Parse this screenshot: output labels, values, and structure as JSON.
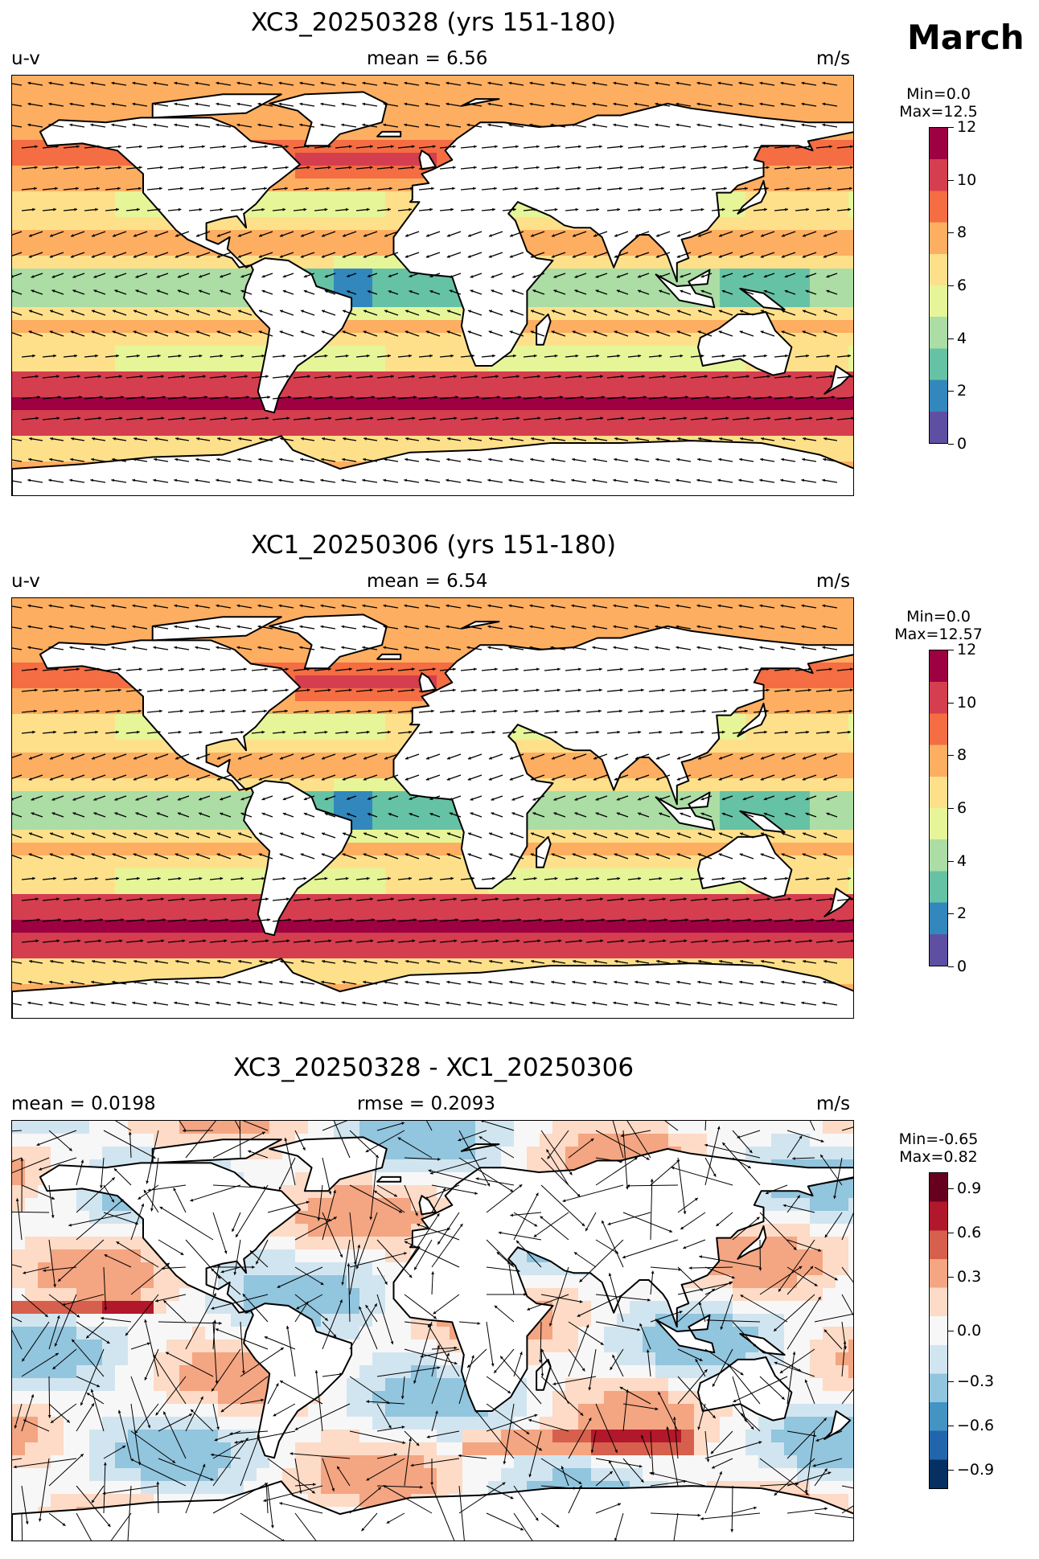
{
  "month": "March",
  "panels": [
    {
      "title": "XC3_20250328 (yrs 151-180)",
      "left_label": "u-v",
      "center_label": "mean = 6.56",
      "right_label": "m/s",
      "cb_min": "Min=0.0",
      "cb_max": "Max=12.5",
      "cb_ticks": [
        "12",
        "10",
        "8",
        "6",
        "4",
        "2",
        "0"
      ]
    },
    {
      "title": "XC1_20250306 (yrs 151-180)",
      "left_label": "u-v",
      "center_label": "mean = 6.54",
      "right_label": "m/s",
      "cb_min": "Min=0.0",
      "cb_max": "Max=12.57",
      "cb_ticks": [
        "12",
        "10",
        "8",
        "6",
        "4",
        "2",
        "0"
      ]
    },
    {
      "title": "XC3_20250328 - XC1_20250306",
      "left_label": "mean = 0.0198",
      "center_label": "rmse = 0.2093",
      "right_label": "m/s",
      "cb_min": "Min=-0.65",
      "cb_max": "Max=0.82",
      "cb_ticks": [
        "0.9",
        "0.6",
        "0.3",
        "0.0",
        "−0.3",
        "−0.6",
        "−0.9"
      ]
    }
  ],
  "colors": {
    "speed_scale": [
      "#5e4fa2",
      "#3288bd",
      "#66c2a5",
      "#abdda4",
      "#e6f598",
      "#fee08b",
      "#fdae61",
      "#f46d43",
      "#d53e4f",
      "#9e0142"
    ],
    "diff_scale": [
      "#053061",
      "#2166ac",
      "#4393c3",
      "#92c5de",
      "#d1e5f0",
      "#f7f7f7",
      "#fddbc7",
      "#f4a582",
      "#d6604d",
      "#b2182b",
      "#67001f"
    ]
  }
}
